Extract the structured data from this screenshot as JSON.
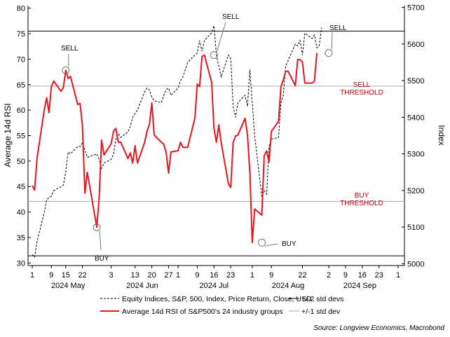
{
  "chart_data": {
    "type": "line",
    "x_day_labels": [
      "1",
      "9",
      "15",
      "22",
      "3",
      "13",
      "20",
      "27",
      "1",
      "9",
      "16",
      "23",
      "1",
      "9",
      "22",
      "2",
      "9",
      "16",
      "23",
      "1"
    ],
    "x_month_labels": [
      "2024 May",
      "2024 Jun",
      "2024 Jul",
      "2024 Aug",
      "2024 Sep"
    ],
    "ylabel_left": "Average 14d RSI",
    "ylabel_right": "Index",
    "yticks_left": [
      "80",
      "75",
      "70",
      "65",
      "60",
      "55",
      "50",
      "45",
      "40",
      "35",
      "30"
    ],
    "yticks_right": [
      "5700",
      "5600",
      "5500",
      "5400",
      "5300",
      "5200",
      "5100",
      "5000"
    ],
    "ylim_left": [
      29.5,
      80.5
    ],
    "ylim_right": [
      4995,
      5705
    ],
    "lines_rsi": {
      "upper_2sd": 75.5,
      "upper_1sd": 64.7,
      "lower_1sd": 42.1,
      "lower_2sd": 31.4
    },
    "threshold_labels": {
      "sell": [
        "SELL",
        "THRESHOLD"
      ],
      "buy": [
        "BUY",
        "THRESHOLD"
      ]
    },
    "annotations": [
      {
        "text": "SELL",
        "x": "2024-05-15",
        "rsi": 67.8
      },
      {
        "text": "BUY",
        "x": "2024-05-28",
        "rsi": 37.0
      },
      {
        "text": "SELL",
        "x": "2024-07-16",
        "rsi": 70.8
      },
      {
        "text": "BUY",
        "x": "2024-08-05",
        "rsi": 34.0
      },
      {
        "text": "SELL",
        "x": "2024-09-02",
        "rsi": 71.2
      }
    ],
    "series": [
      {
        "name": "Average 14d RSI of S&P500's 24 industry groups",
        "axis": "left",
        "color": "#e8141e",
        "points": [
          [
            "2024-05-01",
            45.2
          ],
          [
            "2024-05-02",
            44.3
          ],
          [
            "2024-05-03",
            50.5
          ],
          [
            "2024-05-06",
            60.0
          ],
          [
            "2024-05-07",
            62.4
          ],
          [
            "2024-05-08",
            59.5
          ],
          [
            "2024-05-09",
            64.6
          ],
          [
            "2024-05-10",
            65.7
          ],
          [
            "2024-05-13",
            63.7
          ],
          [
            "2024-05-14",
            64.4
          ],
          [
            "2024-05-15",
            67.8
          ],
          [
            "2024-05-16",
            66.2
          ],
          [
            "2024-05-17",
            66.6
          ],
          [
            "2024-05-20",
            61.1
          ],
          [
            "2024-05-21",
            61.3
          ],
          [
            "2024-05-22",
            57.0
          ],
          [
            "2024-05-23",
            43.7
          ],
          [
            "2024-05-24",
            47.8
          ],
          [
            "2024-05-28",
            37.0
          ],
          [
            "2024-05-29",
            42.9
          ],
          [
            "2024-05-30",
            54.1
          ],
          [
            "2024-05-31",
            51.2
          ],
          [
            "2024-06-03",
            53.4
          ],
          [
            "2024-06-04",
            55.9
          ],
          [
            "2024-06-05",
            56.4
          ],
          [
            "2024-06-06",
            53.7
          ],
          [
            "2024-06-07",
            53.7
          ],
          [
            "2024-06-10",
            50.5
          ],
          [
            "2024-06-11",
            51.6
          ],
          [
            "2024-06-12",
            49.6
          ],
          [
            "2024-06-13",
            53.0
          ],
          [
            "2024-06-14",
            49.6
          ],
          [
            "2024-06-17",
            53.7
          ],
          [
            "2024-06-18",
            55.9
          ],
          [
            "2024-06-19",
            57.2
          ],
          [
            "2024-06-20",
            61.4
          ],
          [
            "2024-06-21",
            55.1
          ],
          [
            "2024-06-24",
            53.7
          ],
          [
            "2024-06-25",
            53.3
          ],
          [
            "2024-06-26",
            51.6
          ],
          [
            "2024-06-27",
            47.6
          ],
          [
            "2024-06-28",
            51.8
          ],
          [
            "2024-07-01",
            52.0
          ],
          [
            "2024-07-02",
            53.7
          ],
          [
            "2024-07-03",
            52.7
          ],
          [
            "2024-07-05",
            52.7
          ],
          [
            "2024-07-08",
            58.4
          ],
          [
            "2024-07-09",
            65.1
          ],
          [
            "2024-07-10",
            64.6
          ],
          [
            "2024-07-11",
            70.5
          ],
          [
            "2024-07-12",
            70.8
          ],
          [
            "2024-07-15",
            65.5
          ],
          [
            "2024-07-16",
            56.4
          ],
          [
            "2024-07-17",
            53.7
          ],
          [
            "2024-07-18",
            57.1
          ],
          [
            "2024-07-19",
            53.7
          ],
          [
            "2024-07-22",
            45.6
          ],
          [
            "2024-07-23",
            44.8
          ],
          [
            "2024-07-24",
            53.6
          ],
          [
            "2024-07-25",
            54.9
          ],
          [
            "2024-07-26",
            55.1
          ],
          [
            "2024-07-29",
            58.4
          ],
          [
            "2024-07-30",
            55.1
          ],
          [
            "2024-07-31",
            47.6
          ],
          [
            "2024-08-01",
            34.0
          ],
          [
            "2024-08-02",
            40.6
          ],
          [
            "2024-08-05",
            39.4
          ],
          [
            "2024-08-06",
            51.0
          ],
          [
            "2024-08-07",
            52.0
          ],
          [
            "2024-08-08",
            49.8
          ],
          [
            "2024-08-09",
            55.8
          ],
          [
            "2024-08-12",
            57.8
          ],
          [
            "2024-08-13",
            64.6
          ],
          [
            "2024-08-14",
            65.9
          ],
          [
            "2024-08-15",
            67.6
          ],
          [
            "2024-08-16",
            67.6
          ],
          [
            "2024-08-19",
            64.8
          ],
          [
            "2024-08-20",
            69.9
          ],
          [
            "2024-08-21",
            69.9
          ],
          [
            "2024-08-22",
            69.4
          ],
          [
            "2024-08-23",
            65.3
          ],
          [
            "2024-08-26",
            65.3
          ],
          [
            "2024-08-27",
            65.7
          ],
          [
            "2024-08-28",
            71.2
          ]
        ]
      },
      {
        "name": "Equity Indices, S&P, 500, Index, Price Return, Close, USD",
        "axis": "right",
        "color": "#000000",
        "dash": true,
        "points": [
          [
            "2024-05-01",
            5025
          ],
          [
            "2024-05-02",
            5018
          ],
          [
            "2024-05-03",
            5060
          ],
          [
            "2024-05-06",
            5140
          ],
          [
            "2024-05-07",
            5175
          ],
          [
            "2024-05-08",
            5180
          ],
          [
            "2024-05-09",
            5185
          ],
          [
            "2024-05-10",
            5200
          ],
          [
            "2024-05-13",
            5210
          ],
          [
            "2024-05-14",
            5215
          ],
          [
            "2024-05-15",
            5250
          ],
          [
            "2024-05-16",
            5305
          ],
          [
            "2024-05-17",
            5300
          ],
          [
            "2024-05-20",
            5320
          ],
          [
            "2024-05-21",
            5320
          ],
          [
            "2024-05-22",
            5330
          ],
          [
            "2024-05-23",
            5310
          ],
          [
            "2024-05-24",
            5290
          ],
          [
            "2024-05-28",
            5300
          ],
          [
            "2024-05-29",
            5285
          ],
          [
            "2024-05-30",
            5260
          ],
          [
            "2024-05-31",
            5275
          ],
          [
            "2024-06-03",
            5285
          ],
          [
            "2024-06-04",
            5300
          ],
          [
            "2024-06-05",
            5340
          ],
          [
            "2024-06-06",
            5355
          ],
          [
            "2024-06-07",
            5345
          ],
          [
            "2024-06-10",
            5360
          ],
          [
            "2024-06-11",
            5375
          ],
          [
            "2024-06-12",
            5400
          ],
          [
            "2024-06-13",
            5410
          ],
          [
            "2024-06-14",
            5420
          ],
          [
            "2024-06-17",
            5470
          ],
          [
            "2024-06-18",
            5480
          ],
          [
            "2024-06-19",
            5475
          ],
          [
            "2024-06-20",
            5455
          ],
          [
            "2024-06-21",
            5445
          ],
          [
            "2024-06-24",
            5440
          ],
          [
            "2024-06-25",
            5460
          ],
          [
            "2024-06-26",
            5475
          ],
          [
            "2024-06-27",
            5480
          ],
          [
            "2024-06-28",
            5460
          ],
          [
            "2024-07-01",
            5480
          ],
          [
            "2024-07-02",
            5500
          ],
          [
            "2024-07-03",
            5510
          ],
          [
            "2024-07-05",
            5550
          ],
          [
            "2024-07-08",
            5570
          ],
          [
            "2024-07-09",
            5575
          ],
          [
            "2024-07-10",
            5610
          ],
          [
            "2024-07-11",
            5580
          ],
          [
            "2024-07-12",
            5610
          ],
          [
            "2024-07-15",
            5630
          ],
          [
            "2024-07-16",
            5650
          ],
          [
            "2024-07-17",
            5570
          ],
          [
            "2024-07-18",
            5540
          ],
          [
            "2024-07-19",
            5510
          ],
          [
            "2024-07-22",
            5570
          ],
          [
            "2024-07-23",
            5560
          ],
          [
            "2024-07-24",
            5430
          ],
          [
            "2024-07-25",
            5400
          ],
          [
            "2024-07-26",
            5440
          ],
          [
            "2024-07-29",
            5460
          ],
          [
            "2024-07-30",
            5430
          ],
          [
            "2024-07-31",
            5530
          ],
          [
            "2024-08-01",
            5440
          ],
          [
            "2024-08-02",
            5350
          ],
          [
            "2024-08-05",
            5185
          ],
          [
            "2024-08-06",
            5200
          ],
          [
            "2024-08-07",
            5190
          ],
          [
            "2024-08-08",
            5320
          ],
          [
            "2024-08-09",
            5340
          ],
          [
            "2024-08-12",
            5345
          ],
          [
            "2024-08-13",
            5440
          ],
          [
            "2024-08-14",
            5460
          ],
          [
            "2024-08-15",
            5540
          ],
          [
            "2024-08-16",
            5555
          ],
          [
            "2024-08-19",
            5600
          ],
          [
            "2024-08-20",
            5595
          ],
          [
            "2024-08-21",
            5610
          ],
          [
            "2024-08-22",
            5570
          ],
          [
            "2024-08-23",
            5630
          ],
          [
            "2024-08-26",
            5615
          ],
          [
            "2024-08-27",
            5625
          ],
          [
            "2024-08-28",
            5590
          ],
          [
            "2024-08-29",
            5595
          ],
          [
            "2024-08-30",
            5645
          ]
        ]
      }
    ],
    "legend": [
      {
        "label": "Equity Indices, S&P, 500, Index, Price Return, Close, USD",
        "style": "dashed-black"
      },
      {
        "label": "+/-2 std devs",
        "style": "solid-black"
      },
      {
        "label": "Average 14d RSI of S&P500's 24 industry groups",
        "style": "solid-red"
      },
      {
        "label": "+/-1 std dev",
        "style": "solid-gray"
      }
    ],
    "source": "Source: Longview Economics, Macrobond"
  }
}
